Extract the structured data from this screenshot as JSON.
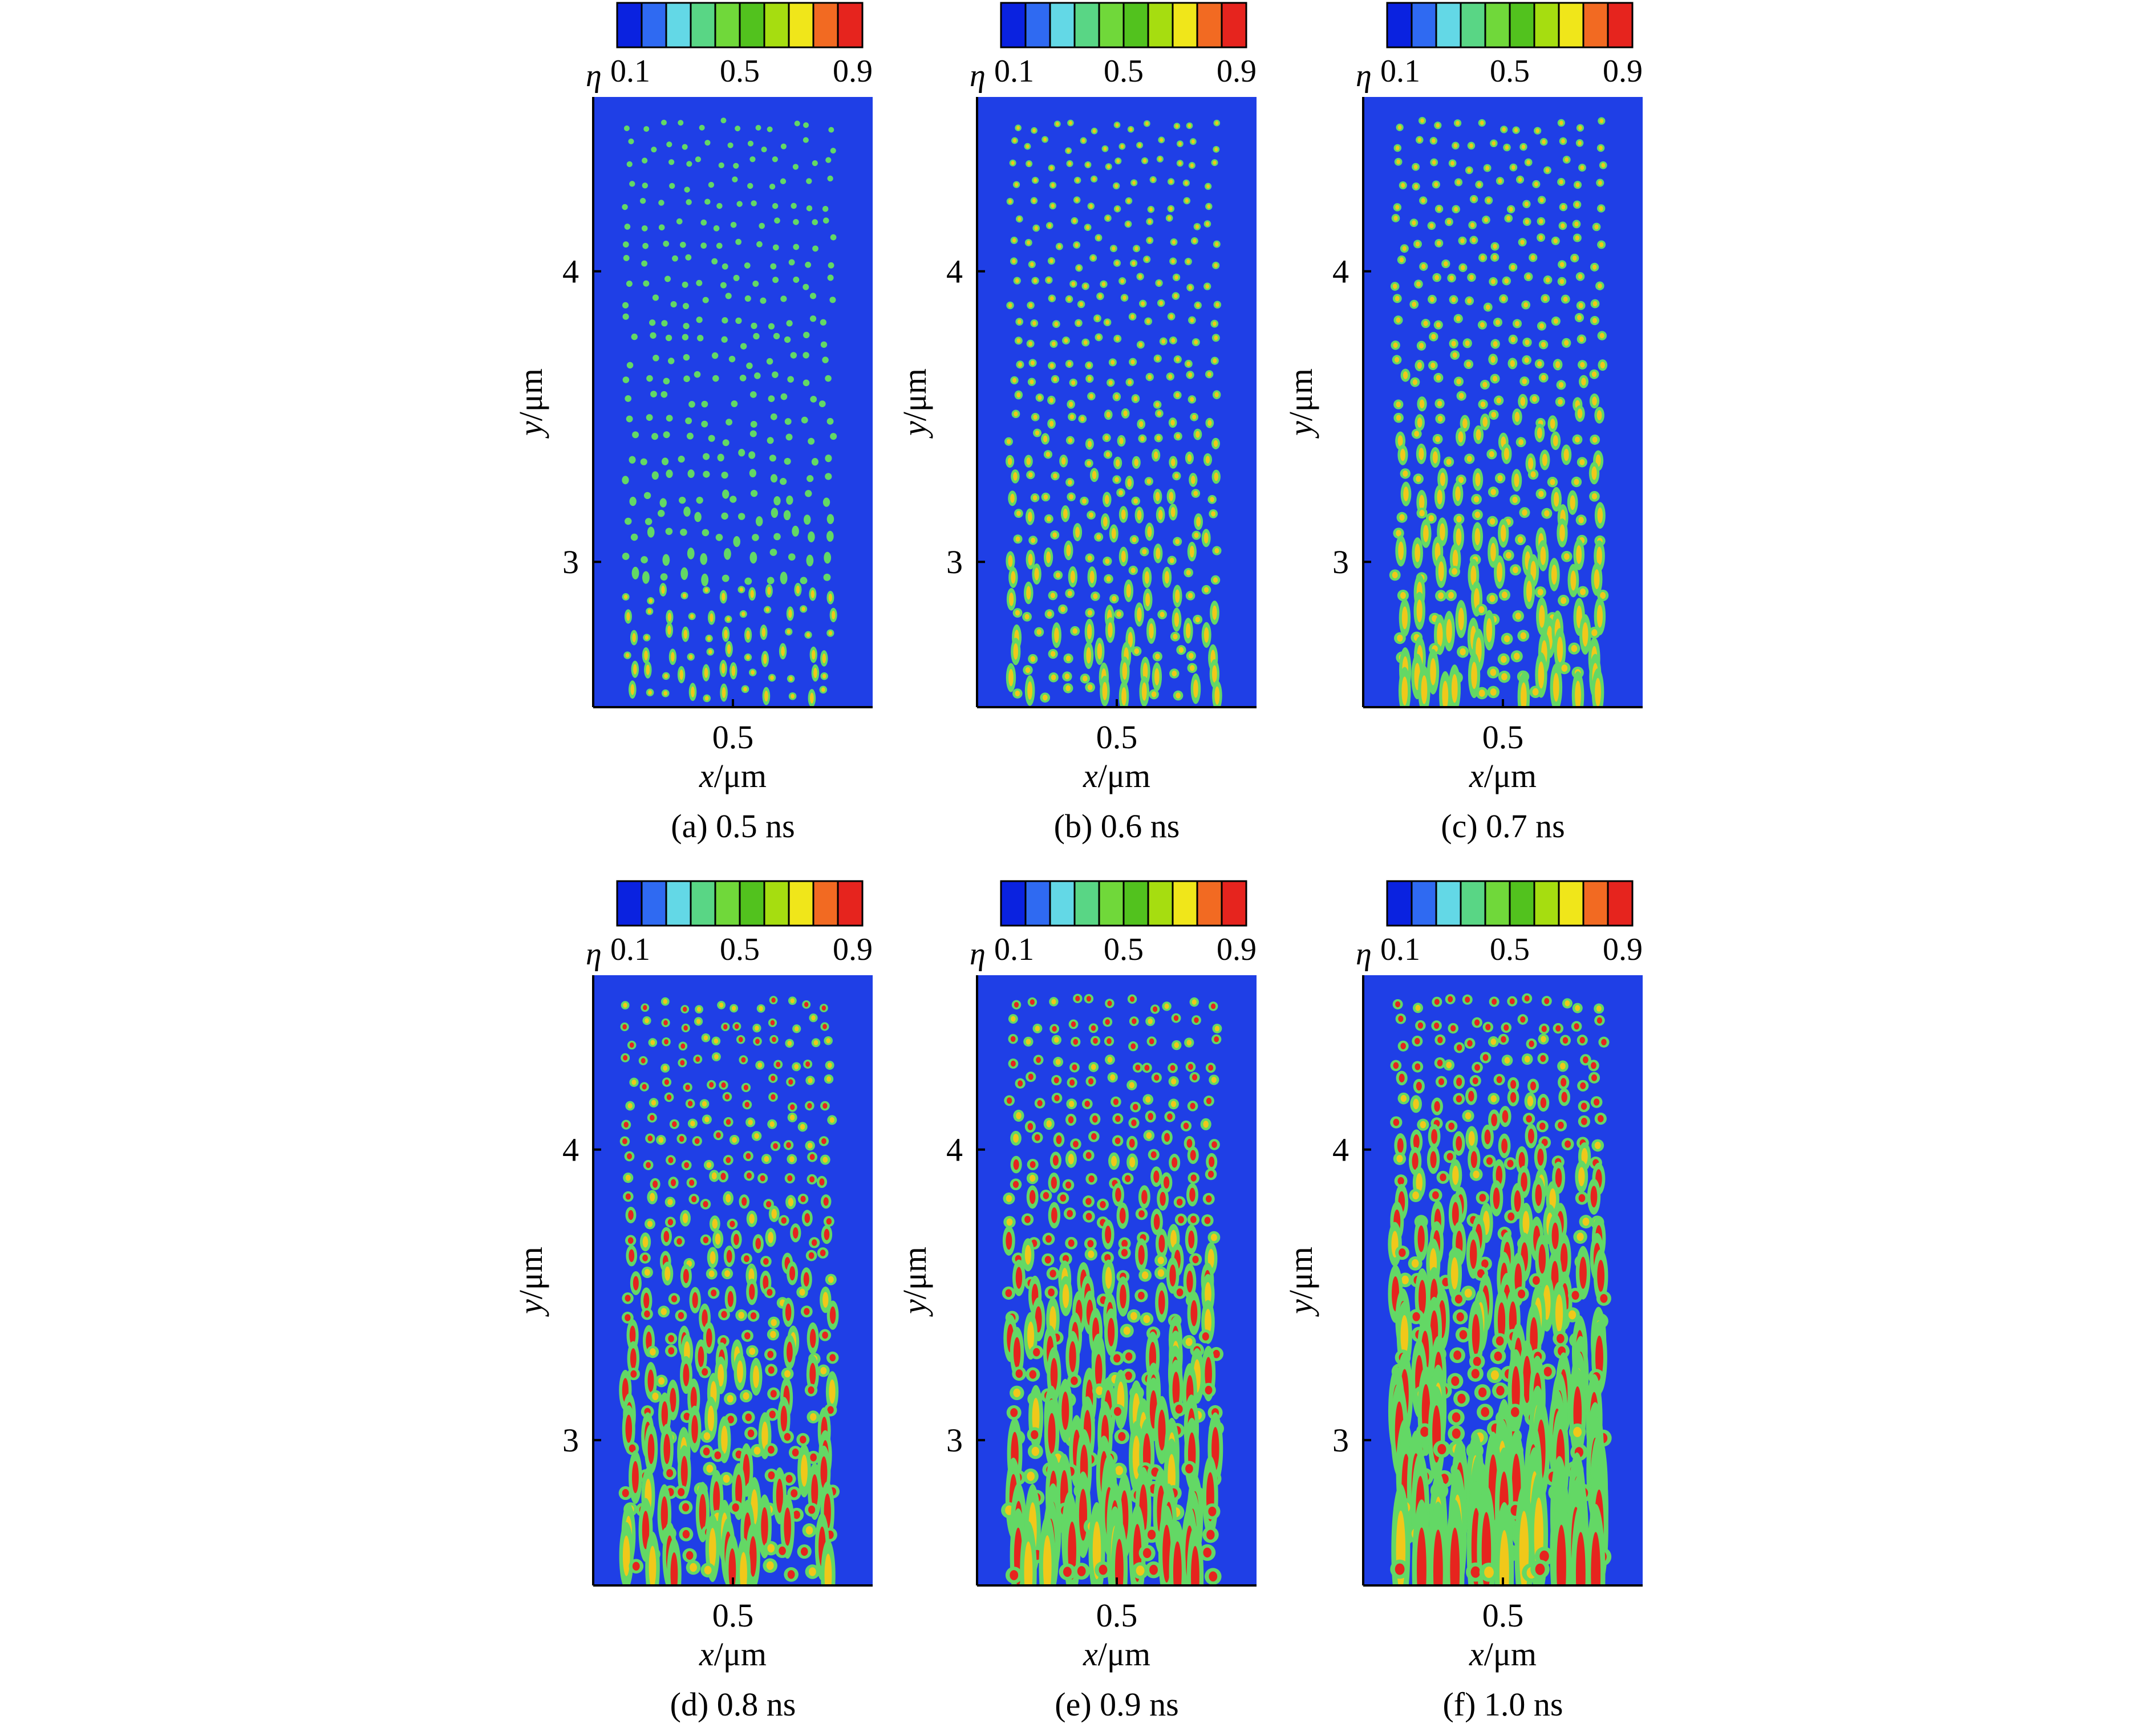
{
  "colorbar": {
    "symbol": "η",
    "tick_labels": [
      "0.1",
      "0.5",
      "0.9"
    ],
    "colors": [
      "#0a22e0",
      "#2f6af2",
      "#63d8e6",
      "#59d685",
      "#70d83a",
      "#52c21e",
      "#a6dd10",
      "#f0e61a",
      "#f26a22",
      "#e6241e"
    ]
  },
  "background_color": "#1f3fe6",
  "panels": [
    {
      "caption": "(a) 0.5 ns",
      "time_ns": 0.5
    },
    {
      "caption": "(b) 0.6 ns",
      "time_ns": 0.6
    },
    {
      "caption": "(c) 0.7 ns",
      "time_ns": 0.7
    },
    {
      "caption": "(d) 0.8 ns",
      "time_ns": 0.8
    },
    {
      "caption": "(e) 0.9 ns",
      "time_ns": 0.9
    },
    {
      "caption": "(f) 1.0 ns",
      "time_ns": 1.0
    }
  ],
  "chart_data": {
    "type": "heatmap",
    "field": "η",
    "value_range": [
      0.1,
      0.9
    ],
    "xlabel_var": "x",
    "xlabel_unit": "/μm",
    "ylabel_var": "y",
    "ylabel_unit": "/μm",
    "x_ticks": [
      0.5
    ],
    "x_tick_labels": [
      "0.5"
    ],
    "y_ticks": [
      3,
      4
    ],
    "y_tick_labels": [
      "3",
      "4"
    ],
    "xlim": [
      0.0,
      1.0
    ],
    "ylim": [
      2.5,
      4.6
    ],
    "grid": false
  }
}
